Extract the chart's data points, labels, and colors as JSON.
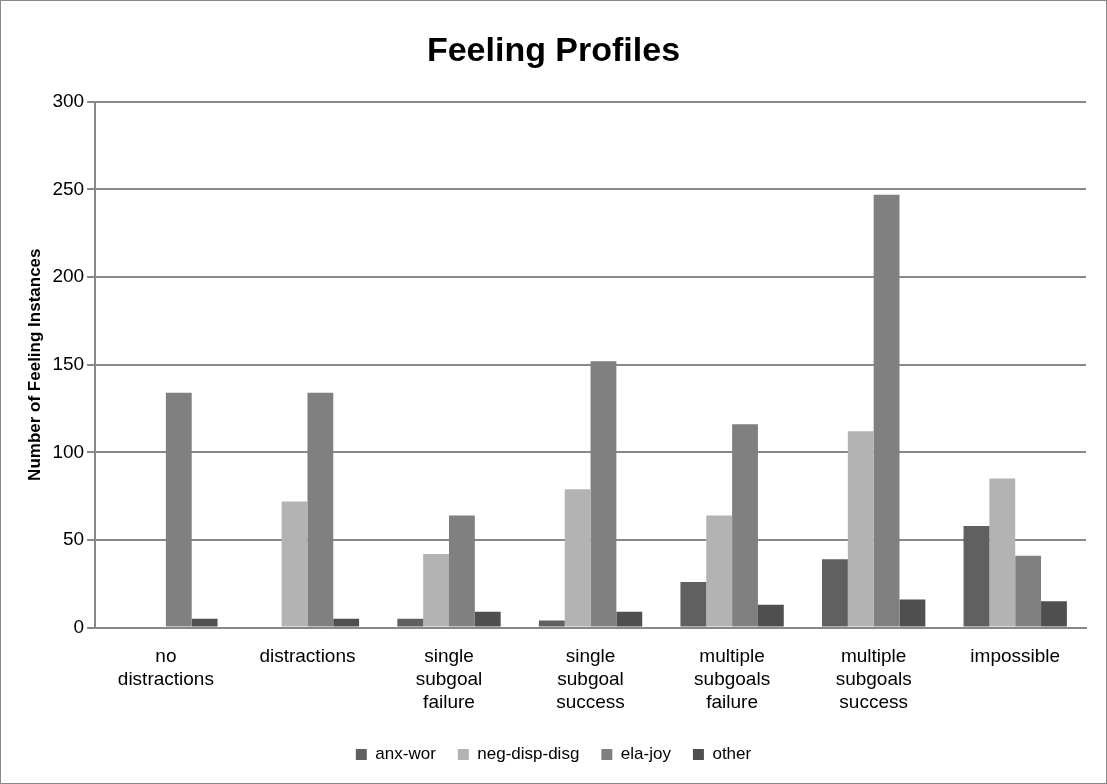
{
  "chart_data": {
    "type": "bar",
    "title": "Feeling Profiles",
    "ylabel": "Number of Feeling Instances",
    "categories": [
      "no distractions",
      "distractions",
      "single subgoal failure",
      "single subgoal success",
      "multiple subgoals failure",
      "multiple subgoals success",
      "impossible"
    ],
    "series": [
      {
        "name": "anx-wor",
        "color": "#606060",
        "values": [
          0,
          0,
          5,
          4,
          26,
          39,
          58
        ]
      },
      {
        "name": "neg-disp-disg",
        "color": "#b3b3b3",
        "values": [
          0,
          72,
          42,
          79,
          64,
          112,
          85
        ]
      },
      {
        "name": "ela-joy",
        "color": "#808080",
        "values": [
          134,
          134,
          64,
          152,
          116,
          247,
          41
        ]
      },
      {
        "name": "other",
        "color": "#4f4f4f",
        "values": [
          5,
          5,
          9,
          9,
          13,
          16,
          15
        ]
      }
    ],
    "ylim": [
      0,
      300
    ],
    "yticks": [
      0,
      50,
      100,
      150,
      200,
      250,
      300
    ],
    "grid": "y",
    "legend": "bottom"
  }
}
